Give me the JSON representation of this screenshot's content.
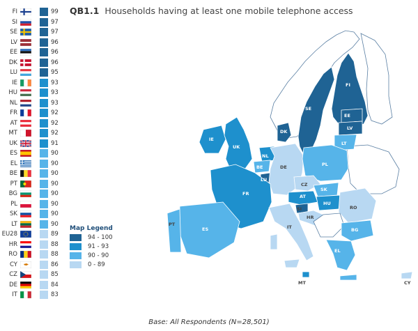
{
  "title": {
    "id": "QB1.1",
    "text": "Households having at least one mobile telephone access"
  },
  "legend": {
    "title": "Map Legend",
    "items": [
      {
        "label": "94 - 100",
        "color": "#1f6394"
      },
      {
        "label": "91 - 93",
        "color": "#1e90cd"
      },
      {
        "label": "90 - 90",
        "color": "#56b4e9"
      },
      {
        "label": "0 - 89",
        "color": "#b8d8f2"
      }
    ]
  },
  "base": "Base: All Respondents (N=28,501)",
  "countries": [
    {
      "code": "FI",
      "value": 99
    },
    {
      "code": "SI",
      "value": 97
    },
    {
      "code": "SE",
      "value": 97
    },
    {
      "code": "LV",
      "value": 96
    },
    {
      "code": "EE",
      "value": 96
    },
    {
      "code": "DK",
      "value": 96
    },
    {
      "code": "LU",
      "value": 95
    },
    {
      "code": "IE",
      "value": 93
    },
    {
      "code": "HU",
      "value": 93
    },
    {
      "code": "NL",
      "value": 93
    },
    {
      "code": "FR",
      "value": 92
    },
    {
      "code": "AT",
      "value": 92
    },
    {
      "code": "MT",
      "value": 92
    },
    {
      "code": "UK",
      "value": 91
    },
    {
      "code": "ES",
      "value": 90
    },
    {
      "code": "EL",
      "value": 90
    },
    {
      "code": "BE",
      "value": 90
    },
    {
      "code": "PT",
      "value": 90
    },
    {
      "code": "BG",
      "value": 90
    },
    {
      "code": "PL",
      "value": 90
    },
    {
      "code": "SK",
      "value": 90
    },
    {
      "code": "LT",
      "value": 90
    },
    {
      "code": "EU28",
      "value": 89
    },
    {
      "code": "HR",
      "value": 88
    },
    {
      "code": "RO",
      "value": 88
    },
    {
      "code": "CY",
      "value": 86
    },
    {
      "code": "CZ",
      "value": 85
    },
    {
      "code": "DE",
      "value": 84
    },
    {
      "code": "IT",
      "value": 83
    }
  ]
}
